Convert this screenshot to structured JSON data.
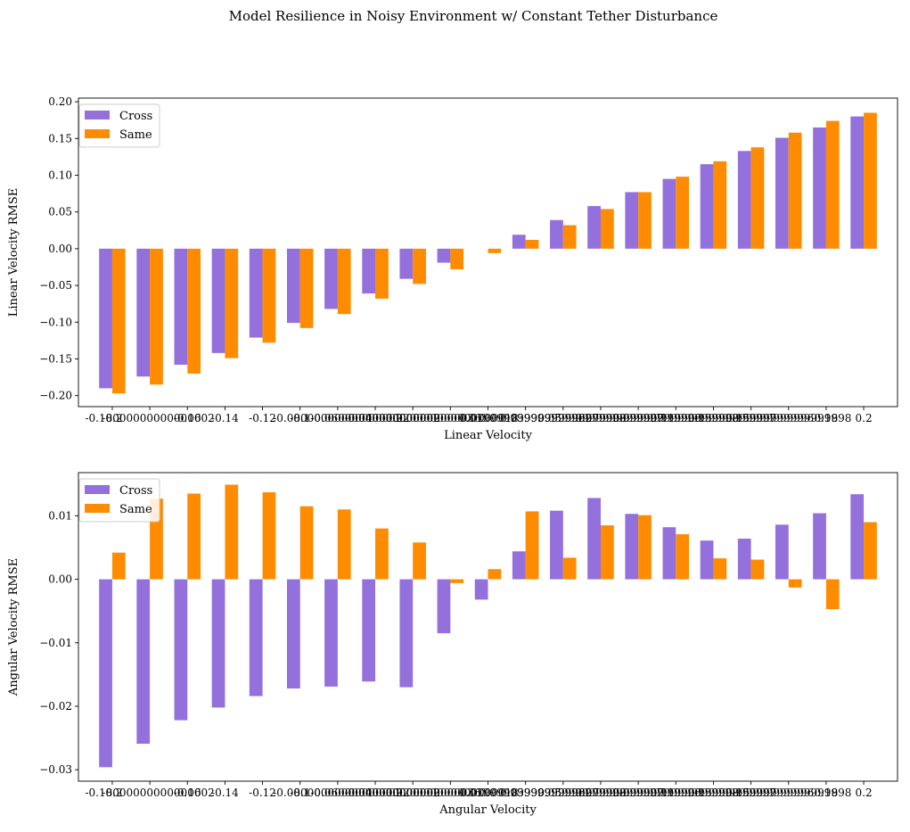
{
  "figure": {
    "title": "Model Resilience in Noisy Environment w/ Constant Tether Disturbance"
  },
  "chart_data": [
    {
      "type": "bar",
      "xlabel": "Linear Velocity",
      "ylabel": "Linear Velocity RMSE",
      "ylim": [
        -0.215,
        0.205
      ],
      "yticks": [
        -0.2,
        -0.15,
        -0.1,
        -0.05,
        0.0,
        0.05,
        0.1,
        0.15,
        0.2
      ],
      "ytick_labels": [
        "−0.20",
        "−0.15",
        "−0.10",
        "−0.05",
        "0.00",
        "0.05",
        "0.10",
        "0.15",
        "0.20"
      ],
      "categories": [
        "-0.2",
        "-0.18000000000000002",
        "-0.16",
        "-0.14",
        "-0.12",
        "-0.1",
        "-0.08000000000000002",
        "-0.06000000000000002",
        "-0.040000000000000036",
        "-0.020000000000000018",
        "0.0",
        "0.019999999999999962",
        "0.03999999999999998",
        "0.05999999999999997",
        "0.07999999999999996",
        "0.09999999999999998",
        "0.11999999999999997",
        "0.13999999999999996",
        "0.15999999999999998",
        "0.18",
        "0.2"
      ],
      "legend": {
        "position": "upper-left"
      },
      "grid": false,
      "series": [
        {
          "name": "Cross",
          "color": "#9370DB",
          "values": [
            -0.19,
            -0.174,
            -0.158,
            -0.142,
            -0.121,
            -0.101,
            -0.082,
            -0.061,
            -0.041,
            -0.019,
            0.0,
            0.019,
            0.039,
            0.058,
            0.077,
            0.095,
            0.115,
            0.133,
            0.151,
            0.165,
            0.18
          ]
        },
        {
          "name": "Same",
          "color": "#FF8C00",
          "values": [
            -0.197,
            -0.185,
            -0.17,
            -0.149,
            -0.128,
            -0.108,
            -0.089,
            -0.068,
            -0.048,
            -0.028,
            -0.006,
            0.012,
            0.032,
            0.054,
            0.077,
            0.098,
            0.119,
            0.138,
            0.158,
            0.174,
            0.185
          ]
        }
      ]
    },
    {
      "type": "bar",
      "xlabel": "Angular Velocity",
      "ylabel": "Angular Velocity RMSE",
      "ylim": [
        -0.0318,
        0.0168
      ],
      "yticks": [
        -0.03,
        -0.02,
        -0.01,
        0.0,
        0.01
      ],
      "ytick_labels": [
        "−0.03",
        "−0.02",
        "−0.01",
        "0.00",
        "0.01"
      ],
      "categories": [
        "-0.2",
        "-0.18000000000000002",
        "-0.16",
        "-0.14",
        "-0.12",
        "-0.1",
        "-0.08000000000000002",
        "-0.06000000000000002",
        "-0.040000000000000036",
        "-0.020000000000000018",
        "0.0",
        "0.019999999999999962",
        "0.03999999999999998",
        "0.05999999999999997",
        "0.07999999999999996",
        "0.09999999999999998",
        "0.11999999999999997",
        "0.13999999999999996",
        "0.15999999999999998",
        "0.18",
        "0.2"
      ],
      "legend": {
        "position": "upper-left"
      },
      "grid": false,
      "series": [
        {
          "name": "Cross",
          "color": "#9370DB",
          "values": [
            -0.0296,
            -0.0259,
            -0.0222,
            -0.0202,
            -0.0184,
            -0.0172,
            -0.0169,
            -0.0161,
            -0.017,
            -0.0085,
            -0.0032,
            0.0044,
            0.0108,
            0.0128,
            0.0103,
            0.0082,
            0.0061,
            0.0064,
            0.0086,
            0.0104,
            0.0134
          ]
        },
        {
          "name": "Same",
          "color": "#FF8C00",
          "values": [
            0.0042,
            0.0127,
            0.0135,
            0.0149,
            0.0137,
            0.0115,
            0.011,
            0.008,
            0.0058,
            -0.0006,
            0.0016,
            0.0107,
            0.0034,
            0.0085,
            0.0101,
            0.0071,
            0.0033,
            0.0031,
            -0.0013,
            -0.0047,
            0.009
          ]
        }
      ]
    }
  ]
}
